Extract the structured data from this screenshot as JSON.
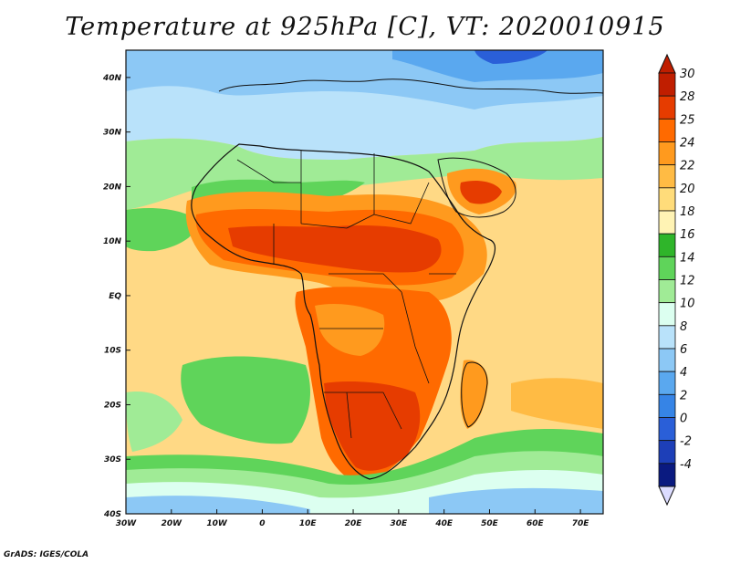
{
  "title": "Temperature at 925hPa [C], VT: 2020010915",
  "credit": "GrADS: IGES/COLA",
  "map": {
    "variable": "Temperature",
    "level": "925hPa",
    "units": "C",
    "valid_time": "2020010915",
    "lon_range": [
      -30,
      75
    ],
    "lat_range": [
      -40,
      45
    ],
    "lon_ticks": [
      "30W",
      "20W",
      "10W",
      "0",
      "10E",
      "20E",
      "30E",
      "40E",
      "50E",
      "60E",
      "70E"
    ],
    "lon_tick_values": [
      -30,
      -20,
      -10,
      0,
      10,
      20,
      30,
      40,
      50,
      60,
      70
    ],
    "lat_ticks": [
      "40N",
      "30N",
      "20N",
      "10N",
      "EQ",
      "10S",
      "20S",
      "30S",
      "40S"
    ],
    "lat_tick_values": [
      40,
      30,
      20,
      10,
      0,
      -10,
      -20,
      -30,
      -40
    ]
  },
  "colorbar": {
    "labels": [
      "30",
      "28",
      "25",
      "24",
      "22",
      "20",
      "18",
      "16",
      "14",
      "12",
      "10",
      "8",
      "6",
      "4",
      "2",
      "0",
      "-2",
      "-4"
    ],
    "colors": [
      "#c01e00",
      "#e63c00",
      "#ff6a00",
      "#ff9a1e",
      "#ffbb44",
      "#ffdc7a",
      "#fff3b4",
      "#2fb52a",
      "#5fd45a",
      "#a0eb96",
      "#dcfff0",
      "#b9e2fa",
      "#8cc8f5",
      "#5aa8ef",
      "#3684e6",
      "#2a5fd8",
      "#1d3fb8",
      "#0a1a80"
    ],
    "overflow_top": "#c01e00",
    "underflow_bottom": "#dcdcff"
  }
}
